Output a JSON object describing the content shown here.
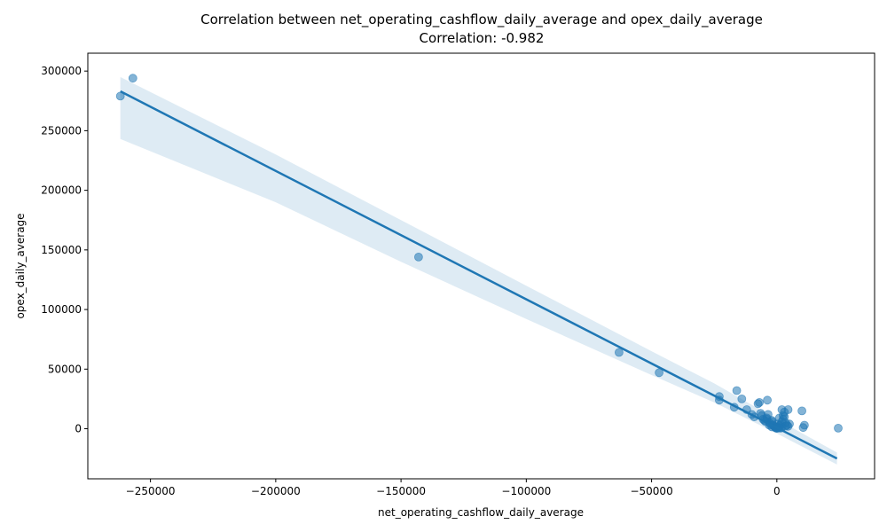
{
  "chart_data": {
    "type": "scatter",
    "title": "Correlation between net_operating_cashflow_daily_average and opex_daily_average",
    "subtitle": "Correlation: -0.982",
    "xlabel": "net_operating_cashflow_daily_average",
    "ylabel": "opex_daily_average",
    "xlim": [
      -275000,
      39000
    ],
    "ylim": [
      -42000,
      315000
    ],
    "xticks": [
      -250000,
      -200000,
      -150000,
      -100000,
      -50000,
      0
    ],
    "xtick_labels": [
      "−250000",
      "−200000",
      "−150000",
      "−100000",
      "−50000",
      "0"
    ],
    "yticks": [
      0,
      50000,
      100000,
      150000,
      200000,
      250000,
      300000
    ],
    "ytick_labels": [
      "0",
      "50000",
      "100000",
      "150000",
      "200000",
      "250000",
      "300000"
    ],
    "grid": false,
    "colors": {
      "points": "#1f77b4",
      "line": "#1f77b4",
      "band": "#1f77b4"
    },
    "regression": {
      "x": [
        -262000,
        24000
      ],
      "y": [
        283000,
        -25000
      ]
    },
    "confidence_band": {
      "x": [
        -262000,
        -200000,
        -150000,
        -100000,
        -50000,
        -25000,
        0,
        24000
      ],
      "upper": [
        295000,
        230000,
        175000,
        120000,
        65000,
        38000,
        8000,
        -20000
      ],
      "lower": [
        243000,
        190000,
        140000,
        92000,
        45000,
        22000,
        -4000,
        -30000
      ]
    },
    "series": [
      {
        "x": [
          -262000,
          -257000,
          -143000,
          -63000,
          -47000,
          -23000,
          -23000,
          -16000,
          -14000,
          -17000,
          -12000,
          -10000,
          -9000,
          -7500,
          -7000,
          -6500,
          -6000,
          -5500,
          -5000,
          -4500,
          -4000,
          -3500,
          -3000,
          -2500,
          -2000,
          -1500,
          -1000,
          -500,
          0,
          500,
          1000,
          1500,
          2000,
          2500,
          3000,
          3500,
          4000,
          4500,
          5000,
          -3800,
          2000,
          4500,
          10000,
          11000,
          10500,
          24500,
          -4000,
          -2000,
          0,
          1000,
          2500,
          3000,
          -1000,
          0,
          1500,
          -3000,
          -2000,
          -500,
          500,
          2000,
          3500,
          1000,
          0
        ],
        "y": [
          279000,
          294000,
          144000,
          64000,
          47000,
          27000,
          24000,
          32000,
          25000,
          18000,
          16000,
          12000,
          10000,
          21000,
          22000,
          13000,
          11000,
          8000,
          7000,
          6000,
          9000,
          12000,
          5000,
          4000,
          6000,
          3000,
          2000,
          1000,
          500,
          1500,
          2500,
          3500,
          6000,
          8000,
          10000,
          5000,
          3000,
          2000,
          4000,
          24000,
          16000,
          16000,
          15000,
          3000,
          1000,
          500,
          8000,
          7000,
          4000,
          9000,
          11000,
          14000,
          2000,
          1000,
          500,
          3000,
          1500,
          800,
          600,
          1200,
          2200,
          700,
          300
        ]
      }
    ]
  }
}
